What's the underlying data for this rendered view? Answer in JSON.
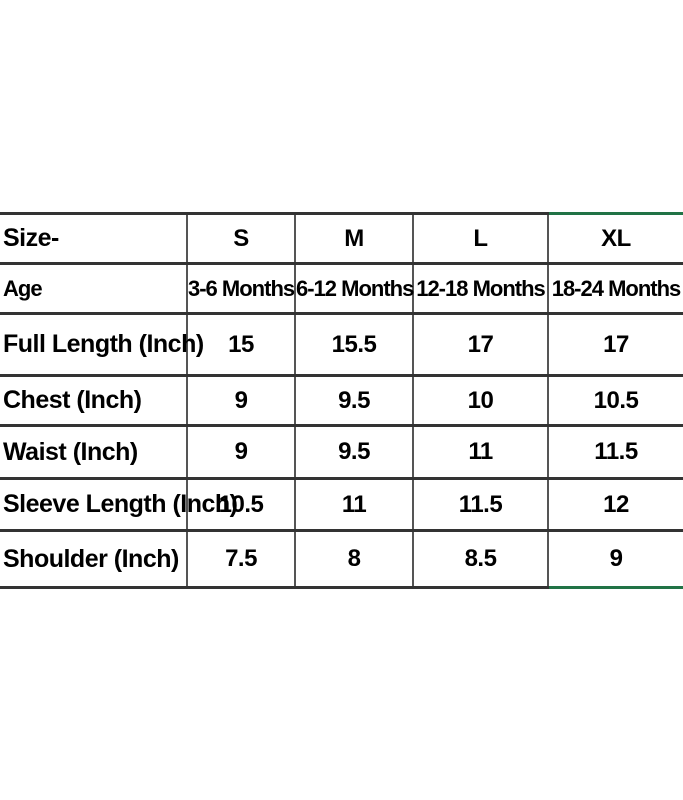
{
  "chart_data": {
    "type": "table",
    "header": {
      "label": "Size-",
      "sizes": [
        "S",
        "M",
        "L",
        "XL"
      ]
    },
    "rows": [
      {
        "label": "Age",
        "values": [
          "3-6 Months",
          "6-12 Months",
          "12-18 Months",
          "18-24 Months"
        ]
      },
      {
        "label": "Full Length (Inch)",
        "values": [
          "15",
          "15.5",
          "17",
          "17"
        ]
      },
      {
        "label": "Chest (Inch)",
        "values": [
          "9",
          "9.5",
          "10",
          "10.5"
        ]
      },
      {
        "label": "Waist (Inch)",
        "values": [
          "9",
          "9.5",
          "11",
          "11.5"
        ]
      },
      {
        "label": "Sleeve Length (Inch)",
        "values": [
          "10.5",
          "11",
          "11.5",
          "12"
        ]
      },
      {
        "label": "Shoulder (Inch)",
        "values": [
          "7.5",
          "8",
          "8.5",
          "9"
        ]
      }
    ],
    "colors": {
      "accent_green": "#217346",
      "grid_horizontal": "#333333",
      "grid_vertical": "#555555",
      "text": "#000000",
      "background": "#ffffff"
    }
  }
}
